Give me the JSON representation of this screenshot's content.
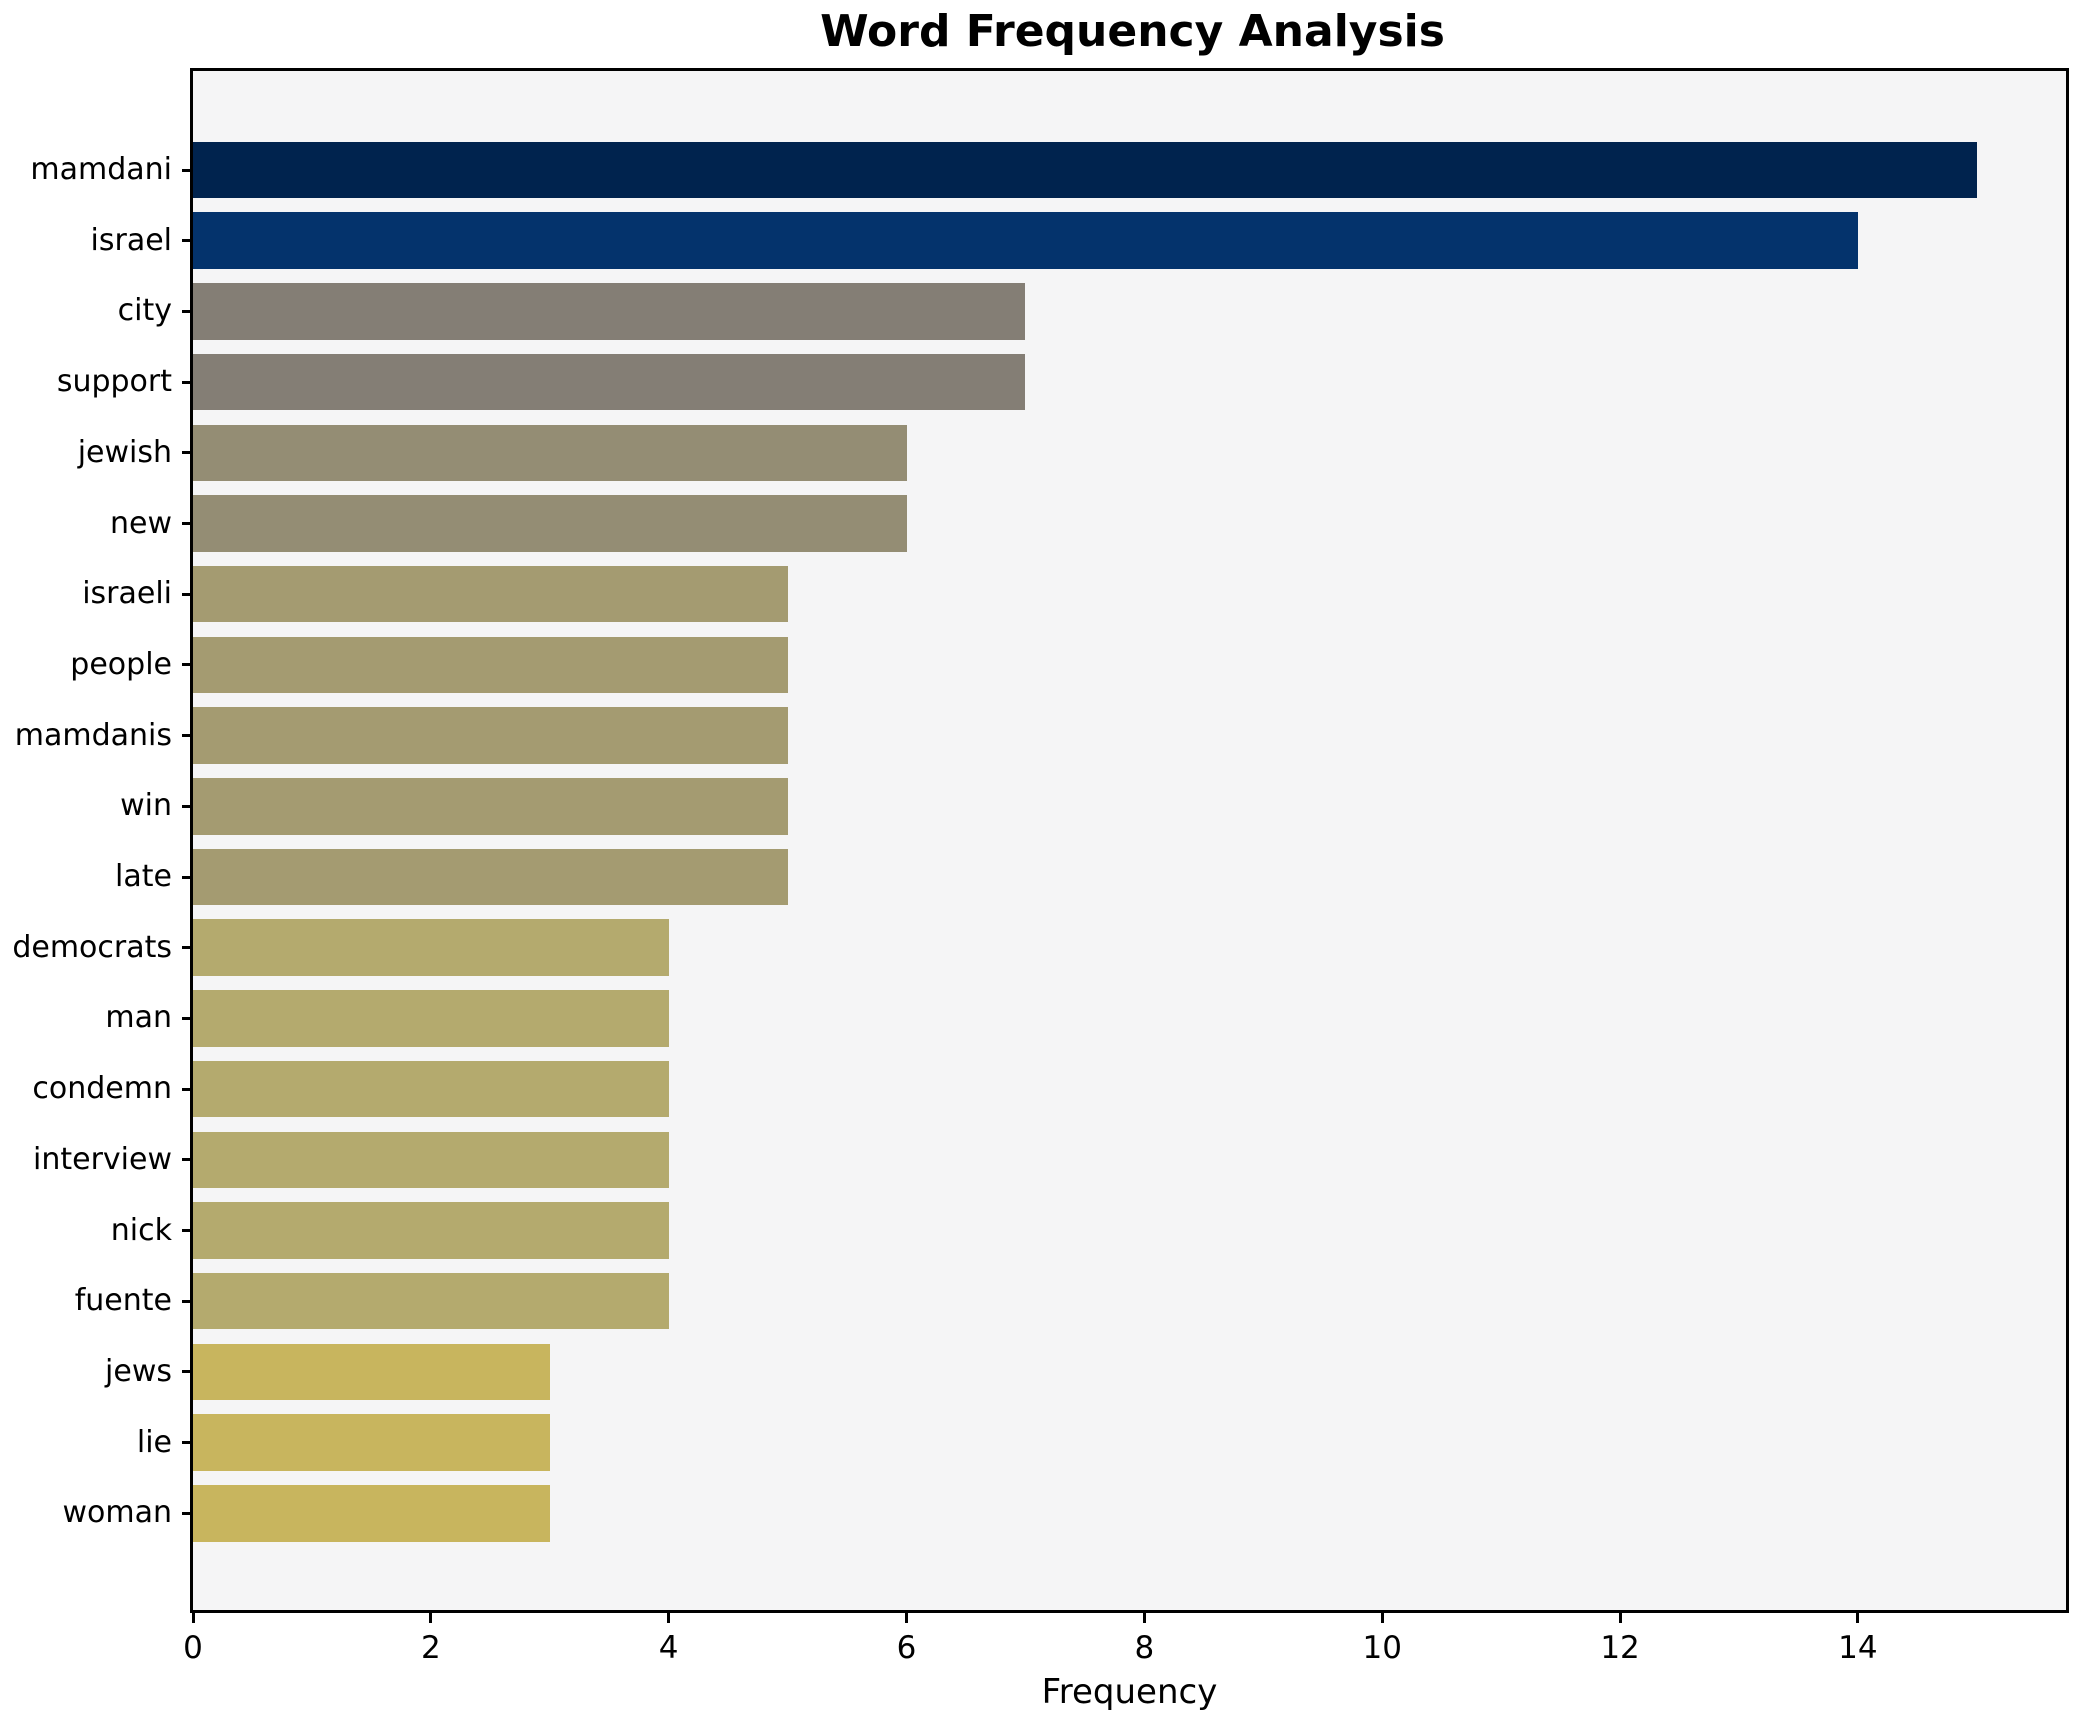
{
  "chart_data": {
    "type": "bar",
    "orientation": "horizontal",
    "title": "Word Frequency Analysis",
    "xlabel": "Frequency",
    "ylabel": "",
    "categories": [
      "mamdani",
      "israel",
      "city",
      "support",
      "jewish",
      "new",
      "israeli",
      "people",
      "mamdanis",
      "win",
      "late",
      "democrats",
      "man",
      "condemn",
      "interview",
      "nick",
      "fuente",
      "jews",
      "lie",
      "woman"
    ],
    "values": [
      15,
      14,
      7,
      7,
      6,
      6,
      5,
      5,
      5,
      5,
      5,
      4,
      4,
      4,
      4,
      4,
      4,
      3,
      3,
      3
    ],
    "xlim": [
      0,
      15.75
    ],
    "xticks": [
      0,
      2,
      4,
      6,
      8,
      10,
      12,
      14
    ],
    "grid": false,
    "legend": false,
    "bar_colors_by_value": {
      "15": "#00234e",
      "14": "#04336c",
      "7": "#847e75",
      "6": "#948d74",
      "5": "#a49b71",
      "4": "#b4aa6e",
      "3": "#c8b55e"
    },
    "plot_background": "#f5f5f6",
    "figure_background": "#ffffff",
    "spine_color": "#000000",
    "text_color": "#000000"
  }
}
